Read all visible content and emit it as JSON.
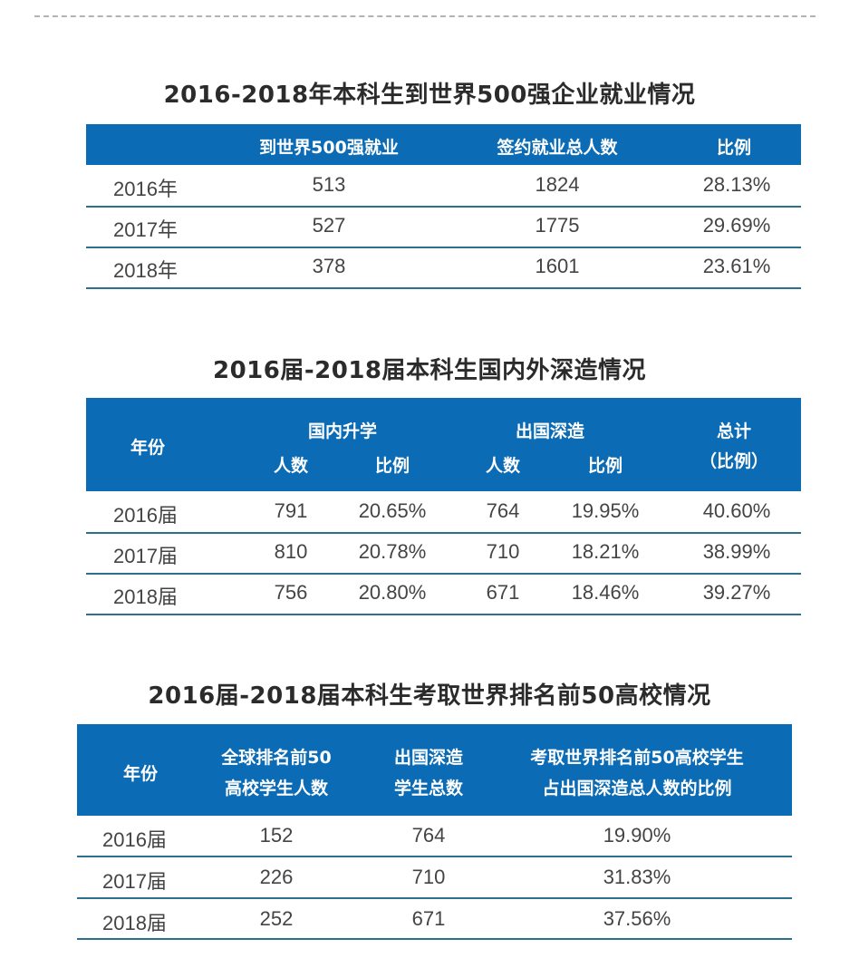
{
  "tables": [
    {
      "title": "2016-2018年本科生到世界500强企业就业情况",
      "headers": [
        "",
        "到世界500强就业",
        "签约就业总人数",
        "比例"
      ],
      "rows": [
        [
          "2016年",
          "513",
          "1824",
          "28.13%"
        ],
        [
          "2017年",
          "527",
          "1775",
          "29.69%"
        ],
        [
          "2018年",
          "378",
          "1601",
          "23.61%"
        ]
      ]
    },
    {
      "title": "2016届-2018届本科生国内外深造情况",
      "headers": {
        "year": "年份",
        "domestic": "国内升学",
        "abroad": "出国深造",
        "total_line1": "总计",
        "total_line2": "（比例）",
        "count": "人数",
        "ratio": "比例"
      },
      "rows": [
        [
          "2016届",
          "791",
          "20.65%",
          "764",
          "19.95%",
          "40.60%"
        ],
        [
          "2017届",
          "810",
          "20.78%",
          "710",
          "18.21%",
          "38.99%"
        ],
        [
          "2018届",
          "756",
          "20.80%",
          "671",
          "18.46%",
          "39.27%"
        ]
      ]
    },
    {
      "title": "2016届-2018届本科生考取世界排名前50高校情况",
      "headers": {
        "year": "年份",
        "col1_line1": "全球排名前50",
        "col1_line2": "高校学生人数",
        "col2_line1": "出国深造",
        "col2_line2": "学生总数",
        "col3_line1": "考取世界排名前50高校学生",
        "col3_line2": "占出国深造总人数的比例"
      },
      "rows": [
        [
          "2016届",
          "152",
          "764",
          "19.90%"
        ],
        [
          "2017届",
          "226",
          "710",
          "31.83%"
        ],
        [
          "2018届",
          "252",
          "671",
          "37.56%"
        ]
      ]
    }
  ],
  "colors": {
    "header_bg": "#0b6bb5",
    "row_rule": "#2d6f8e",
    "title": "#2b2b2b"
  }
}
